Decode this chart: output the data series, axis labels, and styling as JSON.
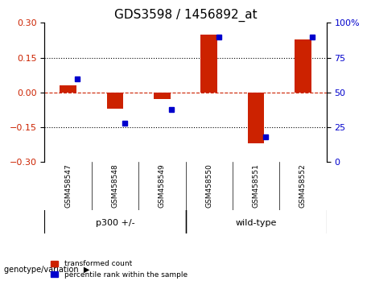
{
  "title": "GDS3598 / 1456892_at",
  "samples": [
    "GSM458547",
    "GSM458548",
    "GSM458549",
    "GSM458550",
    "GSM458551",
    "GSM458552"
  ],
  "red_values": [
    0.03,
    -0.07,
    -0.03,
    0.25,
    -0.22,
    0.23
  ],
  "blue_values": [
    60,
    28,
    38,
    90,
    18,
    90
  ],
  "ylim_left": [
    -0.3,
    0.3
  ],
  "ylim_right": [
    0,
    100
  ],
  "yticks_left": [
    -0.3,
    -0.15,
    0,
    0.15,
    0.3
  ],
  "yticks_right": [
    0,
    25,
    50,
    75,
    100
  ],
  "ytick_labels_right": [
    "0",
    "25",
    "50",
    "75",
    "100%"
  ],
  "groups": [
    {
      "label": "p300 +/-",
      "start": 0,
      "end": 3,
      "color": "#90EE90"
    },
    {
      "label": "wild-type",
      "start": 3,
      "end": 6,
      "color": "#90EE90"
    }
  ],
  "group_label": "genotype/variation",
  "legend_entries": [
    {
      "label": "transformed count",
      "color": "#CC2200"
    },
    {
      "label": "percentile rank within the sample",
      "color": "#0000CC"
    }
  ],
  "bar_width": 0.35,
  "bar_color": "#CC2200",
  "dot_color": "#0000CC",
  "zero_line_color": "#CC2200",
  "hline_color": "#000000",
  "bg_color": "#FFFFFF",
  "plot_bg_color": "#FFFFFF",
  "tick_label_color_left": "#CC2200",
  "tick_label_color_right": "#0000CC",
  "xlabel_area_color": "#CCCCCC",
  "group_area_color": "#90EE90",
  "title_fontsize": 11,
  "tick_fontsize": 8,
  "label_fontsize": 8
}
